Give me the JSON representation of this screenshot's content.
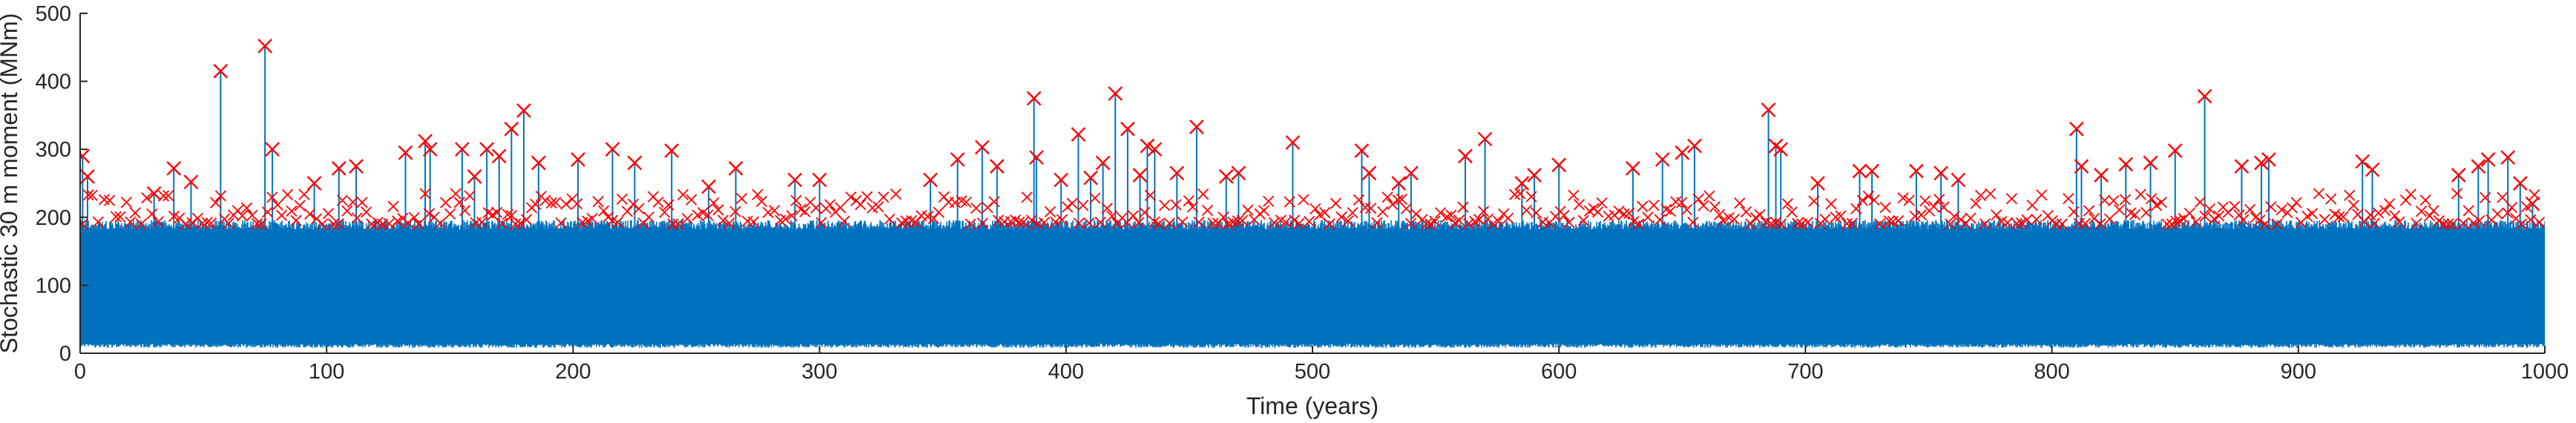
{
  "chart_data": {
    "type": "line",
    "title": "",
    "xlabel": "Time (years)",
    "ylabel": "Stochastic 30 m moment (MNm)",
    "xlim": [
      0,
      1000
    ],
    "ylim": [
      0,
      500
    ],
    "xticks": [
      0,
      100,
      200,
      300,
      400,
      500,
      600,
      700,
      800,
      900,
      1000
    ],
    "yticks": [
      0,
      100,
      200,
      300,
      400,
      500
    ],
    "grid": false,
    "legend": "none",
    "series": [
      {
        "kind": "time-series",
        "color": "#0072BD",
        "description_values": {
          "baseline_min": 12,
          "typical_max": 190
        }
      },
      {
        "kind": "peaks",
        "marker": "x",
        "color": "#FF0000",
        "notable_peaks": [
          {
            "x": 1,
            "y": 290
          },
          {
            "x": 3,
            "y": 260
          },
          {
            "x": 30,
            "y": 235
          },
          {
            "x": 38,
            "y": 272
          },
          {
            "x": 45,
            "y": 252
          },
          {
            "x": 57,
            "y": 415
          },
          {
            "x": 75,
            "y": 452
          },
          {
            "x": 78,
            "y": 300
          },
          {
            "x": 95,
            "y": 250
          },
          {
            "x": 105,
            "y": 272
          },
          {
            "x": 112,
            "y": 275
          },
          {
            "x": 132,
            "y": 295
          },
          {
            "x": 140,
            "y": 312
          },
          {
            "x": 142,
            "y": 300
          },
          {
            "x": 155,
            "y": 300
          },
          {
            "x": 160,
            "y": 260
          },
          {
            "x": 165,
            "y": 300
          },
          {
            "x": 170,
            "y": 290
          },
          {
            "x": 175,
            "y": 330
          },
          {
            "x": 180,
            "y": 357
          },
          {
            "x": 186,
            "y": 280
          },
          {
            "x": 202,
            "y": 285
          },
          {
            "x": 216,
            "y": 300
          },
          {
            "x": 225,
            "y": 280
          },
          {
            "x": 240,
            "y": 298
          },
          {
            "x": 255,
            "y": 245
          },
          {
            "x": 266,
            "y": 272
          },
          {
            "x": 290,
            "y": 255
          },
          {
            "x": 300,
            "y": 255
          },
          {
            "x": 345,
            "y": 255
          },
          {
            "x": 356,
            "y": 285
          },
          {
            "x": 366,
            "y": 303
          },
          {
            "x": 372,
            "y": 275
          },
          {
            "x": 387,
            "y": 375
          },
          {
            "x": 388,
            "y": 288
          },
          {
            "x": 398,
            "y": 255
          },
          {
            "x": 405,
            "y": 322
          },
          {
            "x": 410,
            "y": 258
          },
          {
            "x": 415,
            "y": 280
          },
          {
            "x": 420,
            "y": 382
          },
          {
            "x": 425,
            "y": 330
          },
          {
            "x": 430,
            "y": 262
          },
          {
            "x": 433,
            "y": 305
          },
          {
            "x": 436,
            "y": 300
          },
          {
            "x": 445,
            "y": 265
          },
          {
            "x": 453,
            "y": 333
          },
          {
            "x": 465,
            "y": 260
          },
          {
            "x": 470,
            "y": 265
          },
          {
            "x": 492,
            "y": 310
          },
          {
            "x": 520,
            "y": 298
          },
          {
            "x": 523,
            "y": 265
          },
          {
            "x": 535,
            "y": 250
          },
          {
            "x": 540,
            "y": 265
          },
          {
            "x": 562,
            "y": 290
          },
          {
            "x": 570,
            "y": 315
          },
          {
            "x": 585,
            "y": 250
          },
          {
            "x": 590,
            "y": 262
          },
          {
            "x": 600,
            "y": 277
          },
          {
            "x": 630,
            "y": 272
          },
          {
            "x": 642,
            "y": 285
          },
          {
            "x": 650,
            "y": 295
          },
          {
            "x": 655,
            "y": 305
          },
          {
            "x": 685,
            "y": 358
          },
          {
            "x": 688,
            "y": 305
          },
          {
            "x": 690,
            "y": 300
          },
          {
            "x": 705,
            "y": 250
          },
          {
            "x": 722,
            "y": 268
          },
          {
            "x": 727,
            "y": 268
          },
          {
            "x": 745,
            "y": 268
          },
          {
            "x": 755,
            "y": 265
          },
          {
            "x": 762,
            "y": 255
          },
          {
            "x": 810,
            "y": 330
          },
          {
            "x": 812,
            "y": 275
          },
          {
            "x": 820,
            "y": 262
          },
          {
            "x": 830,
            "y": 278
          },
          {
            "x": 840,
            "y": 280
          },
          {
            "x": 850,
            "y": 298
          },
          {
            "x": 862,
            "y": 378
          },
          {
            "x": 877,
            "y": 275
          },
          {
            "x": 885,
            "y": 280
          },
          {
            "x": 888,
            "y": 285
          },
          {
            "x": 926,
            "y": 282
          },
          {
            "x": 930,
            "y": 270
          },
          {
            "x": 965,
            "y": 262
          },
          {
            "x": 973,
            "y": 275
          },
          {
            "x": 977,
            "y": 285
          },
          {
            "x": 985,
            "y": 288
          },
          {
            "x": 990,
            "y": 250
          },
          {
            "x": 995,
            "y": 220
          }
        ],
        "baseline_peak_range": [
          190,
          235
        ]
      }
    ]
  },
  "colors": {
    "series": "#0072BD",
    "markers": "#FF0000",
    "axis": "#262626"
  }
}
